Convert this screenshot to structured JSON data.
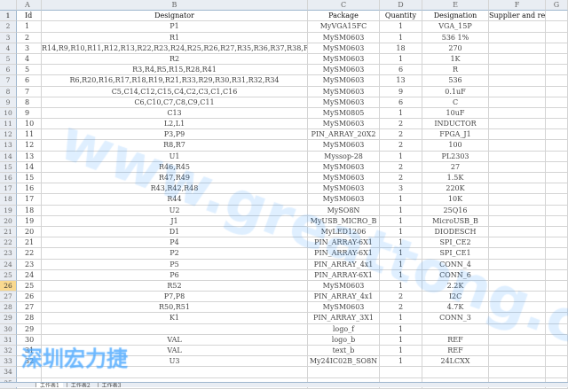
{
  "columns": [
    "A",
    "B",
    "C",
    "D",
    "E",
    "F",
    "G"
  ],
  "header": [
    "Id",
    "Designator",
    "Package",
    "Quantity",
    "Designation",
    "Supplier and ref",
    ""
  ],
  "rows": [
    [
      "1",
      "P1",
      "MyVGA15FC",
      "1",
      "VGA_15P"
    ],
    [
      "2",
      "R1",
      "MySM0603",
      "1",
      "536 1%"
    ],
    [
      "3",
      "R14,R9,R10,R11,R12,R13,R22,R23,R24,R25,R26,R27,R35,R36,R37,R38,R39,R40",
      "MySM0603",
      "18",
      "270"
    ],
    [
      "4",
      "R2",
      "MySM0603",
      "1",
      "1K"
    ],
    [
      "5",
      "R3,R4,R5,R15,R28,R41",
      "MySM0603",
      "6",
      "R"
    ],
    [
      "6",
      "R6,R20,R16,R17,R18,R19,R21,R33,R29,R30,R31,R32,R34",
      "MySM0603",
      "13",
      "536"
    ],
    [
      "7",
      "C5,C14,C12,C15,C4,C2,C3,C1,C16",
      "MySM0603",
      "9",
      "0.1uF"
    ],
    [
      "8",
      "C6,C10,C7,C8,C9,C11",
      "MySM0603",
      "6",
      "C"
    ],
    [
      "9",
      "C13",
      "MySM0805",
      "1",
      "10uF"
    ],
    [
      "10",
      "L2,L1",
      "MySM0603",
      "2",
      "INDUCTOR"
    ],
    [
      "11",
      "P3,P9",
      "PIN_ARRAY_20X2",
      "2",
      "FPGA_J1"
    ],
    [
      "12",
      "R8,R7",
      "MySM0603",
      "2",
      "100"
    ],
    [
      "13",
      "U1",
      "Myssop-28",
      "1",
      "PL2303"
    ],
    [
      "14",
      "R46,R45",
      "MySM0603",
      "2",
      "27"
    ],
    [
      "15",
      "R47,R49",
      "MySM0603",
      "2",
      "1.5K"
    ],
    [
      "16",
      "R43,R42,R48",
      "MySM0603",
      "3",
      "220K"
    ],
    [
      "17",
      "R44",
      "MySM0603",
      "1",
      "10K"
    ],
    [
      "18",
      "U2",
      "MySO8N",
      "1",
      "25Q16"
    ],
    [
      "19",
      "J1",
      "MyUSB_MICRO_B",
      "1",
      "MicroUSB_B"
    ],
    [
      "20",
      "D1",
      "MyLED1206",
      "1",
      "DIODESCH"
    ],
    [
      "21",
      "P4",
      "PIN_ARRAY-6X1",
      "1",
      "SPI_CE2"
    ],
    [
      "22",
      "P2",
      "PIN_ARRAY-6X1",
      "1",
      "SPI_CE1"
    ],
    [
      "23",
      "P5",
      "PIN_ARRAY_4x1",
      "1",
      "CONN_4"
    ],
    [
      "24",
      "P6",
      "PIN_ARRAY-6X1",
      "1",
      "CONN_6"
    ],
    [
      "25",
      "R52",
      "MySM0603",
      "1",
      "2.2K"
    ],
    [
      "26",
      "P7,P8",
      "PIN_ARRAY_4x1",
      "2",
      "I2C"
    ],
    [
      "27",
      "R50,R51",
      "MySM0603",
      "2",
      "4.7K"
    ],
    [
      "28",
      "K1",
      "PIN_ARRAY_3X1",
      "1",
      "CONN_3"
    ],
    [
      "29",
      "",
      "logo_f",
      "1",
      ""
    ],
    [
      "30",
      "VAL",
      "logo_b",
      "1",
      "REF"
    ],
    [
      "31",
      "VAL",
      "text_b",
      "1",
      "REF"
    ],
    [
      "32",
      "U3",
      "My24IC02B_SO8N",
      "1",
      "24LCXX"
    ]
  ],
  "selected_row": 26,
  "total_rows": 35,
  "sheet_tabs": [
    "工作表1",
    "工作表2",
    "工作表3"
  ],
  "watermarks": [
    "www.greattong.com",
    "深圳宏力捷"
  ]
}
